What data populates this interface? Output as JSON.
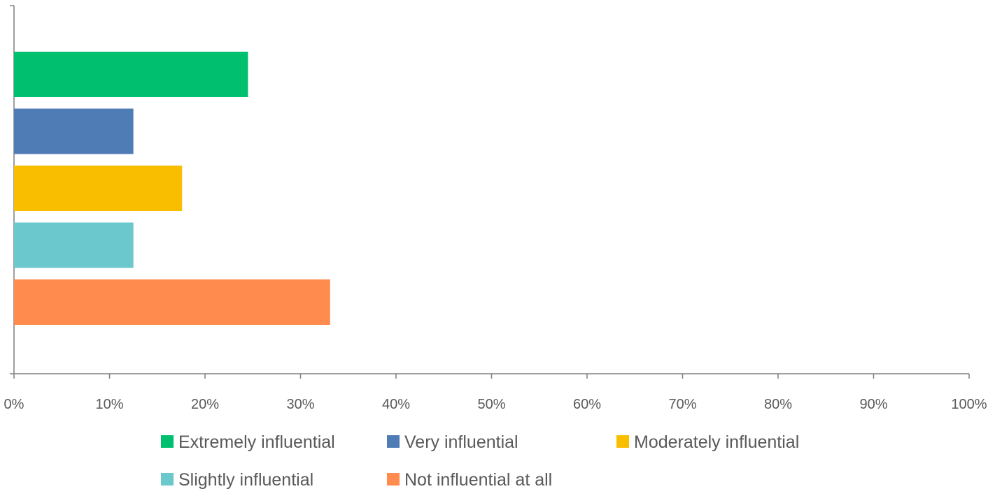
{
  "chart_data": {
    "type": "bar",
    "orientation": "horizontal",
    "title": "",
    "xlabel": "",
    "ylabel": "",
    "xlim": [
      0,
      100
    ],
    "x_ticks": [
      "0%",
      "10%",
      "20%",
      "30%",
      "40%",
      "50%",
      "60%",
      "70%",
      "80%",
      "90%",
      "100%"
    ],
    "grid": false,
    "legend_position": "bottom",
    "series": [
      {
        "name": "Extremely influential",
        "value": 24.5,
        "color": "#00BF6F"
      },
      {
        "name": "Very influential",
        "value": 12.5,
        "color": "#507CB6"
      },
      {
        "name": "Moderately influential",
        "value": 17.6,
        "color": "#F9BE00"
      },
      {
        "name": "Slightly influential",
        "value": 12.5,
        "color": "#6BC8CD"
      },
      {
        "name": "Not influential at all",
        "value": 33.1,
        "color": "#FF8B4F"
      }
    ]
  }
}
